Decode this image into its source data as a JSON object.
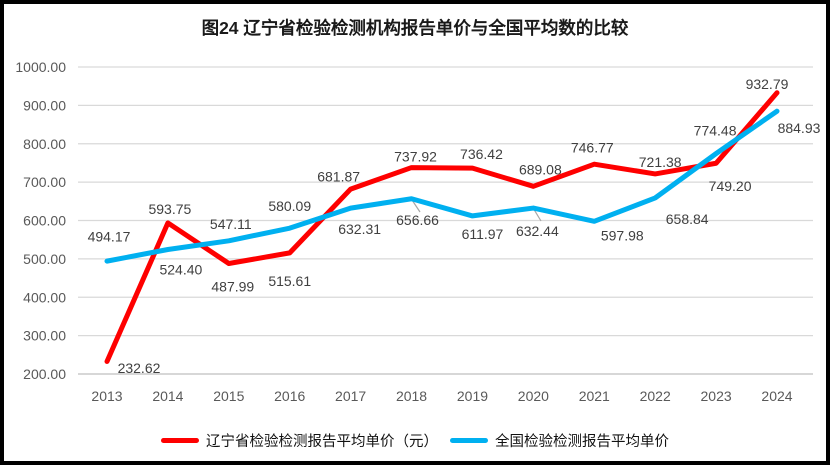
{
  "chart_data": {
    "type": "line",
    "title": "图24 辽宁省检验检测机构报告单价与全国平均数的比较",
    "x": [
      "2013",
      "2014",
      "2015",
      "2016",
      "2017",
      "2018",
      "2019",
      "2020",
      "2021",
      "2022",
      "2023",
      "2024"
    ],
    "series": [
      {
        "name": "辽宁省检验检测报告平均单价（元）",
        "color": "#FE0000",
        "values": [
          232.62,
          593.75,
          487.99,
          515.61,
          681.87,
          737.92,
          736.42,
          689.08,
          746.77,
          721.38,
          749.2,
          932.79
        ]
      },
      {
        "name": "全国检验检测报告平均单价",
        "color": "#00B0F0",
        "values": [
          494.17,
          524.4,
          547.11,
          580.09,
          632.31,
          656.66,
          611.97,
          632.44,
          597.98,
          658.84,
          774.48,
          884.93
        ]
      }
    ],
    "xlabel": "",
    "ylabel": "",
    "ylim": [
      200,
      1000
    ],
    "ytick_labels": [
      "200.00",
      "300.00",
      "400.00",
      "500.00",
      "600.00",
      "700.00",
      "800.00",
      "900.00",
      "1000.00"
    ],
    "grid": true,
    "data_labels": true,
    "legend_position": "bottom",
    "layout_hints": {
      "label_offsets": [
        [
          [
            32,
            6.5
          ],
          [
            2,
            -14
          ],
          [
            4,
            23
          ],
          [
            0,
            28
          ],
          [
            -12,
            -12.5
          ],
          [
            4,
            -11
          ],
          [
            9,
            -14
          ],
          [
            7,
            -17
          ],
          [
            -2,
            -16.5
          ],
          [
            5,
            -12
          ],
          [
            14,
            23
          ],
          [
            -10,
            -9
          ]
        ],
        [
          [
            2,
            -24.5
          ],
          [
            13,
            20
          ],
          [
            2,
            -17
          ],
          [
            0,
            -22
          ],
          [
            9,
            21
          ],
          [
            6,
            21
          ],
          [
            10,
            18
          ],
          [
            4,
            23
          ],
          [
            28,
            14
          ],
          [
            32,
            21
          ],
          [
            -1,
            -23
          ],
          [
            22,
            17
          ]
        ]
      ],
      "leaders": [
        {
          "series": 1,
          "index": 5,
          "to": [
            420,
            212
          ]
        },
        {
          "series": 1,
          "index": 7,
          "to": [
            541,
            221
          ]
        }
      ]
    }
  },
  "style": {
    "grid_line": "#D9D9D9",
    "axis_line": "#BFBFBF",
    "leader_line": "#A6A6A6",
    "tick_text": "#595959",
    "label_text": "#404040",
    "border": "#000000",
    "background": "#FFFFFF"
  }
}
